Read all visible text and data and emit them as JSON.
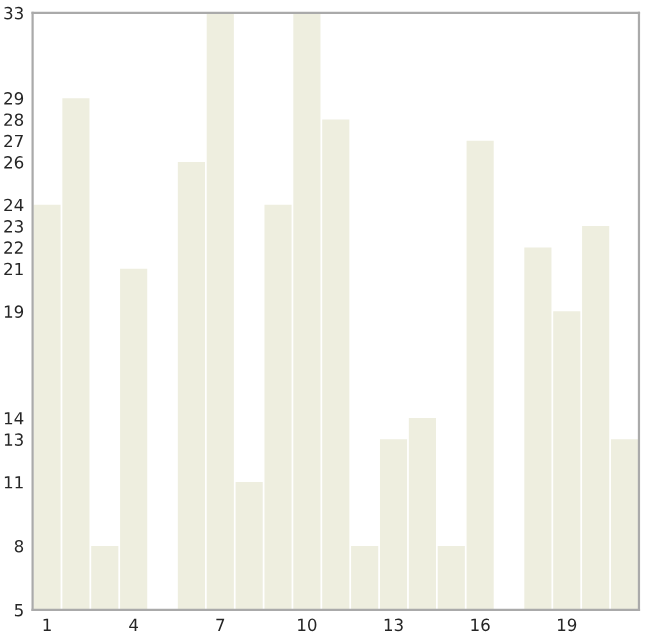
{
  "chart_data": {
    "type": "bar",
    "categories": [
      "1",
      null,
      null,
      "4",
      null,
      null,
      "7",
      null,
      null,
      "10",
      null,
      null,
      "13",
      null,
      null,
      "16",
      null,
      null,
      "19",
      null,
      null
    ],
    "values": [
      24,
      29,
      8,
      21,
      5,
      26,
      33,
      11,
      24,
      33,
      28,
      8,
      13,
      14,
      8,
      27,
      5,
      22,
      19,
      23,
      13
    ],
    "color": "#eeeedf",
    "ylim": [
      5,
      33
    ],
    "yticks": [
      5,
      8,
      11,
      13,
      14,
      19,
      21,
      22,
      23,
      24,
      26,
      27,
      28,
      29,
      33
    ],
    "grid": false
  }
}
